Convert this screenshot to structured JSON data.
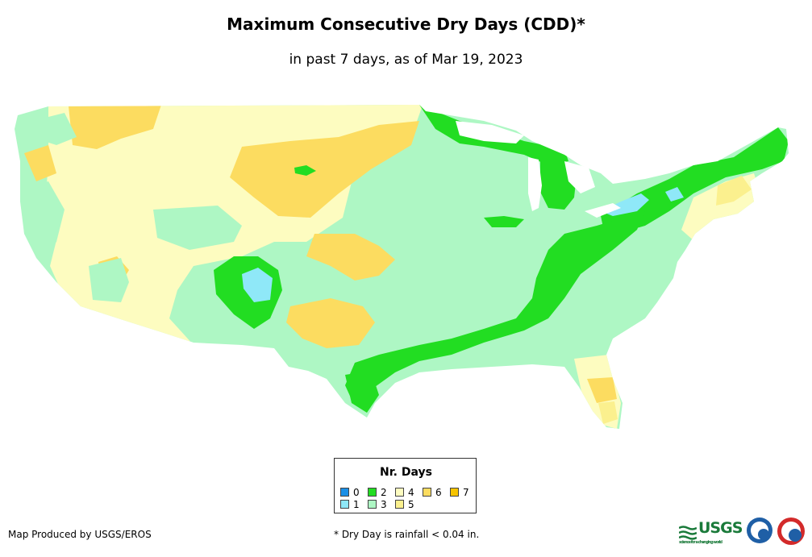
{
  "header": {
    "title": "Maximum Consecutive Dry Days (CDD)*",
    "subtitle": "in past 7 days, as of Mar 19, 2023"
  },
  "legend": {
    "title": "Nr. Days",
    "items": [
      {
        "label": "0",
        "color": "#1a8fe6"
      },
      {
        "label": "1",
        "color": "#8fe8f8"
      },
      {
        "label": "2",
        "color": "#22dd22"
      },
      {
        "label": "3",
        "color": "#aef7c4"
      },
      {
        "label": "4",
        "color": "#fdfcc0"
      },
      {
        "label": "5",
        "color": "#fbf08e"
      },
      {
        "label": "6",
        "color": "#fcdc60"
      },
      {
        "label": "7",
        "color": "#f6c400"
      }
    ]
  },
  "footer": {
    "credit": "Map Produced by USGS/EROS",
    "footnote": "* Dry Day is rainfall < 0.04 in.",
    "usgs_logo": "USGS",
    "usgs_tagline": "science for a changing world"
  },
  "map_colors": {
    "c0": "#1a8fe6",
    "c1": "#8fe8f8",
    "c2": "#22dd22",
    "c3": "#aef7c4",
    "c4": "#fdfcc0",
    "c5": "#fbf08e",
    "c6": "#fcdc60",
    "c7": "#f6c400"
  }
}
